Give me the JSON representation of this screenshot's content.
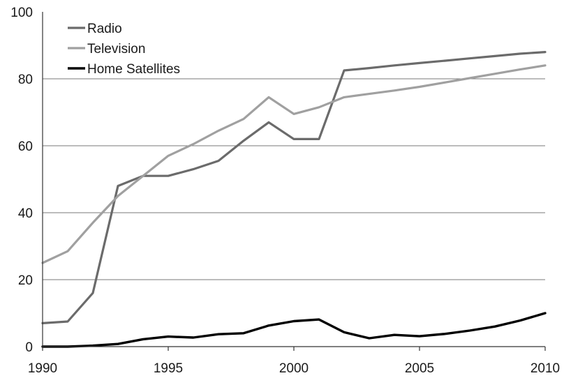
{
  "chart_data": {
    "type": "line",
    "title": "",
    "xlabel": "",
    "ylabel": "",
    "xlim": [
      1990,
      2010
    ],
    "ylim": [
      0,
      100
    ],
    "x_ticks": [
      1990,
      1995,
      2000,
      2005,
      2010
    ],
    "y_ticks": [
      0,
      20,
      40,
      60,
      80,
      100
    ],
    "grid": "horizontal",
    "legend": "top-left",
    "x": [
      1990,
      1991,
      1992,
      1993,
      1994,
      1995,
      1996,
      1997,
      1998,
      1999,
      2000,
      2001,
      2002,
      2003,
      2004,
      2005,
      2006,
      2007,
      2008,
      2009,
      2010
    ],
    "series": [
      {
        "name": "Radio",
        "color": "#6b6b6b",
        "values": [
          7,
          7.5,
          16,
          48,
          51,
          51,
          53,
          55.5,
          61.5,
          67,
          62,
          62,
          82.5,
          83.2,
          84,
          84.7,
          85.4,
          86.1,
          86.8,
          87.5,
          88
        ]
      },
      {
        "name": "Television",
        "color": "#a0a0a0",
        "values": [
          25,
          28.5,
          37,
          45,
          51,
          57,
          60.5,
          64.5,
          68,
          74.5,
          69.5,
          71.5,
          74.5,
          75.5,
          76.5,
          77.6,
          78.9,
          80.2,
          81.5,
          82.8,
          84
        ]
      },
      {
        "name": "Home Satellites",
        "color": "#000000",
        "values": [
          0,
          0,
          0.3,
          0.8,
          2.2,
          3,
          2.7,
          3.7,
          4,
          6.3,
          7.6,
          8.1,
          4.3,
          2.5,
          3.5,
          3.1,
          3.8,
          4.8,
          6.0,
          7.8,
          10
        ]
      }
    ]
  }
}
